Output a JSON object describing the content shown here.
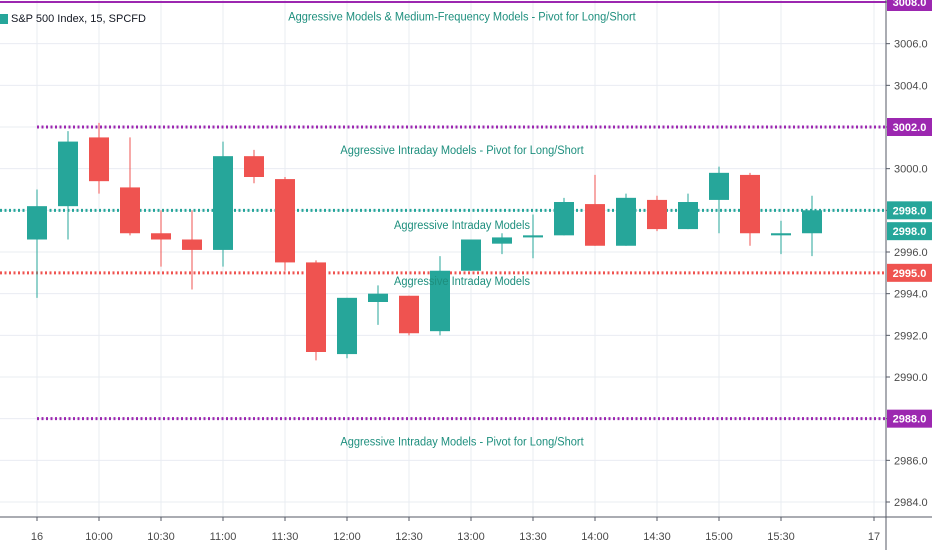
{
  "header": {
    "symbol_label": "S&P 500 Index, 15, SPCFD"
  },
  "colors": {
    "up": "#26a69a",
    "down": "#ef5350",
    "grid": "#e9ecf2",
    "axis_text": "#4a4a4a",
    "purple": "#9c27b0",
    "pivot_text": "#1e8f7e"
  },
  "chart_data": {
    "type": "candlestick",
    "title": "S&P 500 Index, 15, SPCFD",
    "x_tick_labels": [
      "16",
      "10:00",
      "10:30",
      "11:00",
      "11:30",
      "12:00",
      "12:30",
      "13:00",
      "13:30",
      "14:00",
      "14:30",
      "15:00",
      "15:30",
      "17"
    ],
    "x_tick_bar_index": [
      0,
      2,
      4,
      6,
      8,
      10,
      12,
      14,
      16,
      18,
      20,
      22,
      24,
      27
    ],
    "ylim": [
      2983,
      3009
    ],
    "y_ticks": [
      2984.0,
      2986.0,
      2988.0,
      2990.0,
      2992.0,
      2994.0,
      2996.0,
      2998.0,
      3000.0,
      3002.0,
      3004.0,
      3006.0,
      3008.0
    ],
    "grid": true,
    "candles": [
      {
        "o": 2996.6,
        "h": 2999.0,
        "l": 2993.8,
        "c": 2998.2
      },
      {
        "o": 2998.2,
        "h": 3001.8,
        "l": 2996.6,
        "c": 3001.3
      },
      {
        "o": 3001.5,
        "h": 3002.2,
        "l": 2998.8,
        "c": 2999.4
      },
      {
        "o": 2999.1,
        "h": 3001.5,
        "l": 2996.8,
        "c": 2996.9
      },
      {
        "o": 2996.9,
        "h": 2998.0,
        "l": 2995.3,
        "c": 2996.6
      },
      {
        "o": 2996.6,
        "h": 2998.0,
        "l": 2994.2,
        "c": 2996.1
      },
      {
        "o": 2996.1,
        "h": 3001.3,
        "l": 2995.3,
        "c": 3000.6
      },
      {
        "o": 3000.6,
        "h": 3000.9,
        "l": 2999.3,
        "c": 2999.6
      },
      {
        "o": 2999.5,
        "h": 2999.6,
        "l": 2995.1,
        "c": 2995.5
      },
      {
        "o": 2995.5,
        "h": 2995.6,
        "l": 2990.8,
        "c": 2991.2
      },
      {
        "o": 2991.1,
        "h": 2993.8,
        "l": 2990.9,
        "c": 2993.8
      },
      {
        "o": 2993.6,
        "h": 2994.4,
        "l": 2992.5,
        "c": 2994.0
      },
      {
        "o": 2993.9,
        "h": 2993.9,
        "l": 2992.0,
        "c": 2992.1
      },
      {
        "o": 2992.2,
        "h": 2995.8,
        "l": 2992.0,
        "c": 2995.1
      },
      {
        "o": 2995.1,
        "h": 2996.6,
        "l": 2995.1,
        "c": 2996.6
      },
      {
        "o": 2996.4,
        "h": 2996.9,
        "l": 2995.9,
        "c": 2996.7
      },
      {
        "o": 2996.7,
        "h": 2997.8,
        "l": 2995.7,
        "c": 2996.8
      },
      {
        "o": 2996.8,
        "h": 2998.6,
        "l": 2996.8,
        "c": 2998.4
      },
      {
        "o": 2998.3,
        "h": 2999.7,
        "l": 2996.3,
        "c": 2996.3
      },
      {
        "o": 2996.3,
        "h": 2998.8,
        "l": 2996.3,
        "c": 2998.6
      },
      {
        "o": 2998.5,
        "h": 2998.7,
        "l": 2997.0,
        "c": 2997.1
      },
      {
        "o": 2997.1,
        "h": 2998.8,
        "l": 2997.1,
        "c": 2998.4
      },
      {
        "o": 2998.5,
        "h": 3000.1,
        "l": 2996.9,
        "c": 2999.8
      },
      {
        "o": 2999.7,
        "h": 2999.8,
        "l": 2996.3,
        "c": 2996.9
      },
      {
        "o": 2996.8,
        "h": 2997.5,
        "l": 2995.9,
        "c": 2996.9
      },
      {
        "o": 2996.9,
        "h": 2998.7,
        "l": 2995.8,
        "c": 2998.0
      }
    ],
    "levels": [
      {
        "price": 3008.0,
        "label": "3008.0",
        "color": "purple",
        "style": "solid"
      },
      {
        "price": 3002.0,
        "label": "3002.0",
        "color": "purple",
        "style": "dotted"
      },
      {
        "price": 2998.0,
        "label": "2998.0",
        "color": "up",
        "style": "dotted"
      },
      {
        "price": 2995.0,
        "label": "2995.0",
        "color": "down",
        "style": "dotted"
      },
      {
        "price": 2988.0,
        "label": "2988.0",
        "color": "purple",
        "style": "dotted"
      }
    ],
    "extra_price_labels": [
      {
        "price": 2997.0,
        "label": "2998.0",
        "color": "up"
      }
    ],
    "annotations": [
      {
        "text": "Aggressive Models & Medium-Frequency Models - Pivot for Long/Short",
        "price": 3007.3
      },
      {
        "text": "Aggressive Intraday Models - Pivot for Long/Short",
        "price": 3000.9
      },
      {
        "text": "Aggressive Intraday Models",
        "price": 2997.3
      },
      {
        "text": "Aggressive Intraday Models",
        "price": 2994.6
      },
      {
        "text": "Aggressive Intraday Models - Pivot for Long/Short",
        "price": 2986.9
      }
    ]
  }
}
